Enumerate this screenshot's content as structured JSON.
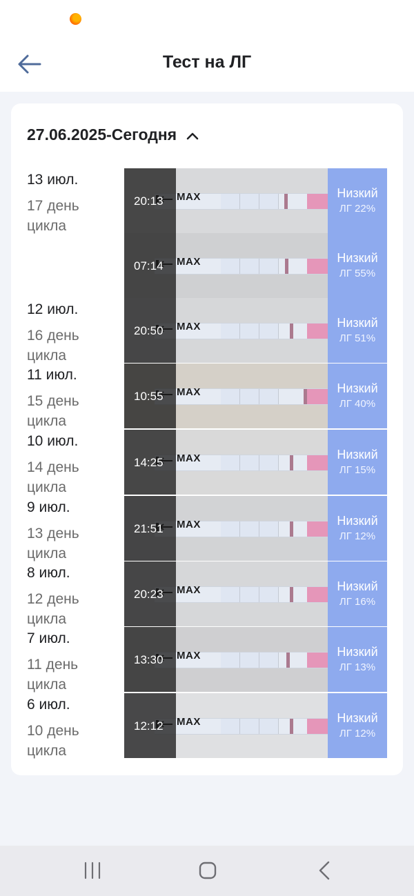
{
  "app_bar": {
    "title": "Тест на ЛГ"
  },
  "range": {
    "label": "27.06.2025-Сегодня"
  },
  "strip": {
    "max_label": "MAX"
  },
  "entries": [
    {
      "date": "13 июл.",
      "cycle": "17 день цикла",
      "time": "20:13",
      "level": "Низкий",
      "lh": "ЛГ 22%"
    },
    {
      "date": "",
      "cycle": "",
      "time": "07:14",
      "level": "Низкий",
      "lh": "ЛГ 55%"
    },
    {
      "date": "12 июл.",
      "cycle": "16 день цикла",
      "time": "20:50",
      "level": "Низкий",
      "lh": "ЛГ 51%"
    },
    {
      "date": "11 июл.",
      "cycle": "15 день цикла",
      "time": "10:55",
      "level": "Низкий",
      "lh": "ЛГ 40%"
    },
    {
      "date": "10 июл.",
      "cycle": "14 день цикла",
      "time": "14:25",
      "level": "Низкий",
      "lh": "ЛГ 15%"
    },
    {
      "date": "9 июл.",
      "cycle": "13 день цикла",
      "time": "21:51",
      "level": "Низкий",
      "lh": "ЛГ 12%"
    },
    {
      "date": "8 июл.",
      "cycle": "12 день цикла",
      "time": "20:23",
      "level": "Низкий",
      "lh": "ЛГ 16%"
    },
    {
      "date": "7 июл.",
      "cycle": "11 день цикла",
      "time": "13:30",
      "level": "Низкий",
      "lh": "ЛГ 13%"
    },
    {
      "date": "6 июл.",
      "cycle": "10 день цикла",
      "time": "12:12",
      "level": "Низкий",
      "lh": "ЛГ 12%"
    }
  ],
  "colors": {
    "result_bg": "#8eaaee",
    "card_bg": "#ffffff",
    "page_bg": "#f2f4f9"
  },
  "icons": {
    "back": "arrow-left-icon",
    "collapse": "chevron-up-icon",
    "nav_recent": "recent-apps-icon",
    "nav_home": "home-icon",
    "nav_back": "chevron-left-icon"
  }
}
